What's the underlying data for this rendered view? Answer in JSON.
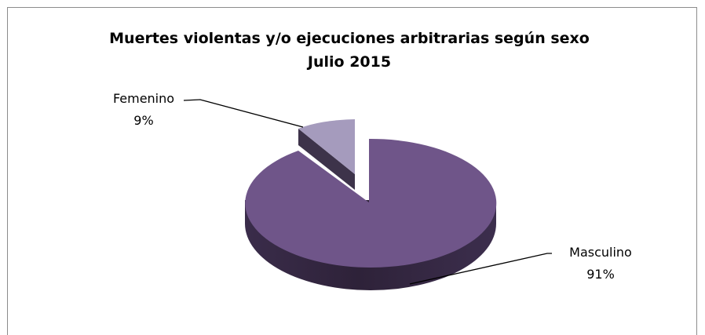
{
  "chart_data": {
    "type": "pie",
    "title": "Muertes violentas y/o ejecuciones arbitrarias según sexo",
    "subtitle": "Julio 2015",
    "categories": [
      "Masculino",
      "Femenino"
    ],
    "values": [
      91,
      9
    ],
    "value_labels": [
      "91%",
      "9%"
    ],
    "unit": "%",
    "colors": {
      "Masculino": "#6f5589",
      "Femenino": "#a59bbd"
    },
    "legend": "none",
    "exploded": "Femenino",
    "style": "3d"
  }
}
